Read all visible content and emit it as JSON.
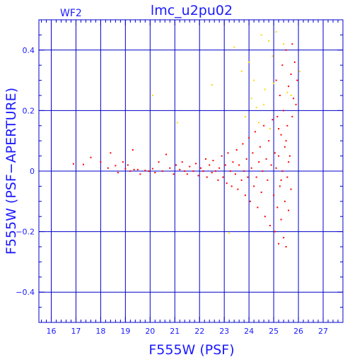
{
  "chart_data": {
    "type": "scatter",
    "title": "lmc_u2pu02",
    "corner_label": "WF2",
    "xlabel": "F555W (PSF)",
    "ylabel": "F555W (PSF−APERTURE)",
    "xlim": [
      15.5,
      27.8
    ],
    "ylim": [
      -0.5,
      0.5
    ],
    "xticks": [
      16,
      17,
      18,
      19,
      20,
      21,
      22,
      23,
      24,
      25,
      26,
      27
    ],
    "xtick_labels": [
      "16",
      "17",
      "18",
      "19",
      "20",
      "21",
      "22",
      "23",
      "24",
      "25",
      "26",
      "27"
    ],
    "yticks": [
      -0.4,
      -0.2,
      0,
      0.2,
      0.4
    ],
    "ytick_labels": [
      "−0.4",
      "−0.2",
      "0",
      "0.2",
      "0.4"
    ],
    "grid": true,
    "colors": {
      "axis": "#0000cc",
      "text": "#1a1aff",
      "main": "#ff0000",
      "outlier": "#ffd700"
    },
    "series": [
      {
        "color": "#ff0000",
        "points": [
          [
            16.9,
            0.024
          ],
          [
            17.3,
            0.022
          ],
          [
            17.6,
            0.045
          ],
          [
            18.0,
            0.03
          ],
          [
            18.3,
            0.01
          ],
          [
            18.4,
            0.06
          ],
          [
            18.6,
            0.018
          ],
          [
            18.7,
            -0.005
          ],
          [
            18.9,
            0.03
          ],
          [
            19.0,
            0.008
          ],
          [
            19.1,
            0.02
          ],
          [
            19.2,
            0.0
          ],
          [
            19.3,
            0.07
          ],
          [
            19.35,
            0.005
          ],
          [
            19.5,
            0.005
          ],
          [
            19.6,
            -0.01
          ],
          [
            19.8,
            0.002
          ],
          [
            19.95,
            0.0
          ],
          [
            20.1,
            0.008
          ],
          [
            20.2,
            -0.005
          ],
          [
            20.35,
            0.03
          ],
          [
            20.5,
            0.0
          ],
          [
            20.65,
            0.055
          ],
          [
            20.8,
            0.01
          ],
          [
            20.95,
            -0.01
          ],
          [
            21.05,
            0.02
          ],
          [
            21.2,
            0.005
          ],
          [
            21.3,
            0.03
          ],
          [
            21.4,
            0.0
          ],
          [
            21.5,
            -0.01
          ],
          [
            21.6,
            0.015
          ],
          [
            21.75,
            0.0
          ],
          [
            21.85,
            0.025
          ],
          [
            21.95,
            -0.015
          ],
          [
            22.05,
            0.01
          ],
          [
            22.15,
            0.0
          ],
          [
            22.25,
            0.04
          ],
          [
            22.3,
            -0.02
          ],
          [
            22.4,
            0.02
          ],
          [
            22.5,
            -0.005
          ],
          [
            22.55,
            0.035
          ],
          [
            22.65,
            0.0
          ],
          [
            22.75,
            -0.03
          ],
          [
            22.8,
            0.01
          ],
          [
            22.9,
            0.05
          ],
          [
            22.95,
            -0.02
          ],
          [
            23.05,
            0.02
          ],
          [
            23.1,
            -0.04
          ],
          [
            23.15,
            0.06
          ],
          [
            23.25,
            0.0
          ],
          [
            23.3,
            -0.05
          ],
          [
            23.35,
            0.03
          ],
          [
            23.45,
            -0.01
          ],
          [
            23.5,
            0.07
          ],
          [
            23.55,
            -0.06
          ],
          [
            23.6,
            0.02
          ],
          [
            23.7,
            -0.03
          ],
          [
            23.75,
            0.09
          ],
          [
            23.8,
            0.0
          ],
          [
            23.85,
            -0.08
          ],
          [
            23.9,
            0.04
          ],
          [
            23.95,
            -0.02
          ],
          [
            24.0,
            0.11
          ],
          [
            24.05,
            -0.1
          ],
          [
            24.1,
            0.01
          ],
          [
            24.15,
            0.06
          ],
          [
            24.2,
            -0.05
          ],
          [
            24.25,
            0.13
          ],
          [
            24.3,
            -0.02
          ],
          [
            24.35,
            -0.12
          ],
          [
            24.4,
            0.03
          ],
          [
            24.45,
            0.08
          ],
          [
            24.5,
            -0.07
          ],
          [
            24.55,
            0.0
          ],
          [
            24.6,
            0.15
          ],
          [
            24.65,
            -0.15
          ],
          [
            24.7,
            0.04
          ],
          [
            24.75,
            -0.03
          ],
          [
            24.8,
            0.1
          ],
          [
            24.85,
            -0.18
          ],
          [
            24.9,
            0.02
          ],
          [
            24.95,
            0.17
          ],
          [
            25.0,
            -0.08
          ],
          [
            25.05,
            0.06
          ],
          [
            25.05,
            -0.2
          ],
          [
            25.1,
            0.01
          ],
          [
            25.1,
            0.3
          ],
          [
            25.15,
            -0.12
          ],
          [
            25.15,
            0.18
          ],
          [
            25.2,
            0.05
          ],
          [
            25.2,
            -0.24
          ],
          [
            25.25,
            0.25
          ],
          [
            25.25,
            -0.05
          ],
          [
            25.3,
            0.12
          ],
          [
            25.3,
            -0.16
          ],
          [
            25.35,
            0.35
          ],
          [
            25.35,
            0.0
          ],
          [
            25.4,
            -0.22
          ],
          [
            25.4,
            0.2
          ],
          [
            25.45,
            0.08
          ],
          [
            25.45,
            -0.1
          ],
          [
            25.5,
            0.4
          ],
          [
            25.5,
            -0.25
          ],
          [
            25.55,
            0.15
          ],
          [
            25.55,
            -0.02
          ],
          [
            25.6,
            0.28
          ],
          [
            25.6,
            -0.13
          ],
          [
            25.65,
            0.05
          ],
          [
            25.7,
            0.32
          ],
          [
            25.7,
            -0.06
          ],
          [
            25.75,
            0.42
          ],
          [
            25.75,
            0.18
          ],
          [
            25.8,
            0.24
          ],
          [
            25.85,
            0.36
          ],
          [
            25.9,
            0.22
          ],
          [
            25.95,
            0.3
          ],
          [
            25.5,
            0.1
          ],
          [
            25.6,
            0.03
          ],
          [
            25.3,
            -0.03
          ],
          [
            25.2,
            0.14
          ]
        ]
      },
      {
        "color": "#ffd700",
        "points": [
          [
            20.1,
            0.25
          ],
          [
            21.1,
            0.16
          ],
          [
            22.5,
            0.285
          ],
          [
            23.2,
            -0.205
          ],
          [
            23.4,
            0.41
          ],
          [
            23.7,
            0.33
          ],
          [
            23.85,
            0.18
          ],
          [
            24.0,
            0.36
          ],
          [
            24.1,
            0.24
          ],
          [
            24.2,
            0.3
          ],
          [
            24.3,
            0.21
          ],
          [
            24.4,
            0.16
          ],
          [
            24.5,
            0.45
          ],
          [
            24.6,
            0.22
          ],
          [
            24.65,
            0.27
          ],
          [
            24.8,
            0.43
          ],
          [
            24.85,
            0.14
          ],
          [
            24.95,
            0.38
          ],
          [
            25.0,
            0.29
          ],
          [
            25.1,
            0.46
          ],
          [
            25.4,
            0.42
          ],
          [
            25.55,
            0.26
          ],
          [
            25.7,
            0.25
          ],
          [
            26.05,
            0.33
          ]
        ]
      }
    ]
  }
}
